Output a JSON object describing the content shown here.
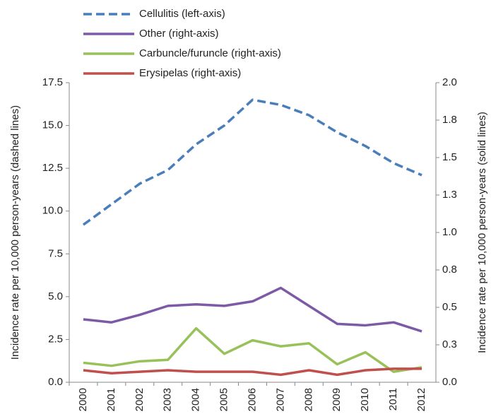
{
  "chart_data": {
    "type": "line",
    "y_label": "Incidence rate per 10,000 person-years (dashed lines)",
    "y2_label": "Incidence rate per 10,000 person-years (solid lines)",
    "categories": [
      "2000",
      "2001",
      "2002",
      "2003",
      "2004",
      "2005",
      "2006",
      "2007",
      "2008",
      "2009",
      "2010",
      "2011",
      "2012"
    ],
    "ylim": [
      0,
      17.5
    ],
    "yticks": [
      {
        "value": 0,
        "label": "0.0"
      },
      {
        "value": 2.5,
        "label": "2.5"
      },
      {
        "value": 5,
        "label": "5.0"
      },
      {
        "value": 7.5,
        "label": "7.5"
      },
      {
        "value": 10,
        "label": "10.0"
      },
      {
        "value": 12.5,
        "label": "12.5"
      },
      {
        "value": 15,
        "label": "15.0"
      },
      {
        "value": 17.5,
        "label": "17.5"
      }
    ],
    "y2lim": [
      0,
      2
    ],
    "y2ticks": [
      {
        "value": 0,
        "label": "0.0"
      },
      {
        "value": 0.25,
        "label": "0.3"
      },
      {
        "value": 0.5,
        "label": "0.5"
      },
      {
        "value": 0.75,
        "label": "0.8"
      },
      {
        "value": 1,
        "label": "1.0"
      },
      {
        "value": 1.25,
        "label": "1.3"
      },
      {
        "value": 1.5,
        "label": "1.5"
      },
      {
        "value": 1.75,
        "label": "1.8"
      },
      {
        "value": 2,
        "label": "2.0"
      }
    ],
    "series": [
      {
        "name": "Cellulitis (left-axis)",
        "color": "#4a7ebb",
        "dashed": true,
        "values": [
          9.2,
          10.4,
          11.6,
          12.4,
          13.9,
          15.0,
          16.5,
          16.2,
          15.6,
          14.6,
          13.8,
          12.8,
          12.1
        ]
      },
      {
        "name": "Other (right-axis)",
        "color": "#7d5aa6",
        "axis": "y2",
        "values": [
          0.42,
          0.4,
          0.45,
          0.51,
          0.52,
          0.51,
          0.54,
          0.63,
          0.51,
          0.39,
          0.38,
          0.4,
          0.34
        ]
      },
      {
        "name": "Carbuncle/furuncle (right-axis)",
        "color": "#98c15a",
        "axis": "y2",
        "values": [
          0.13,
          0.11,
          0.14,
          0.15,
          0.36,
          0.19,
          0.28,
          0.24,
          0.26,
          0.12,
          0.2,
          0.07,
          0.1
        ]
      },
      {
        "name": "Erysipelas (right-axis)",
        "color": "#c0504d",
        "axis": "y2",
        "values": [
          0.08,
          0.06,
          0.07,
          0.08,
          0.07,
          0.07,
          0.07,
          0.05,
          0.08,
          0.05,
          0.08,
          0.09,
          0.09
        ]
      }
    ]
  }
}
